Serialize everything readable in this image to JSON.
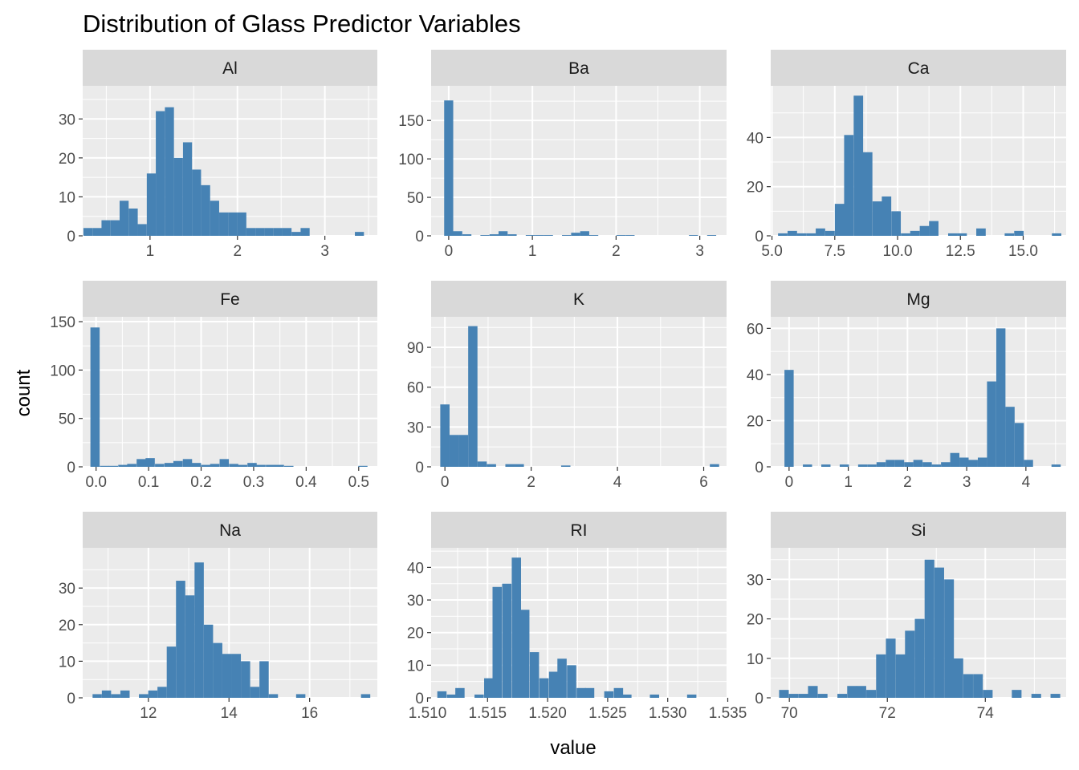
{
  "title": "Distribution of Glass Predictor Variables",
  "xlabel": "value",
  "ylabel": "count",
  "colors": {
    "bar": "#4682b4",
    "panel_background": "#ebebeb",
    "strip_background": "#d9d9d9",
    "grid": "#ffffff"
  },
  "chart_data": [
    {
      "type": "bar",
      "facet": "Al",
      "xlim": [
        0.23,
        3.6
      ],
      "ylim": [
        0,
        38.5
      ],
      "xticks": [
        1,
        2,
        3
      ],
      "xtick_labels": [
        "1",
        "2",
        "3"
      ],
      "yticks": [
        0,
        10,
        20,
        30
      ],
      "ytick_labels": [
        "0",
        "10",
        "20",
        "30"
      ],
      "bin_width": 0.1035,
      "bin_centers": [
        0.29,
        0.394,
        0.497,
        0.601,
        0.704,
        0.808,
        0.911,
        1.015,
        1.118,
        1.222,
        1.325,
        1.429,
        1.532,
        1.636,
        1.739,
        1.843,
        1.946,
        2.05,
        2.153,
        2.257,
        2.36,
        2.464,
        2.567,
        2.671,
        2.774,
        2.878,
        2.981,
        3.085,
        3.188,
        3.292,
        3.395,
        3.499
      ],
      "counts": [
        2,
        2,
        4,
        4,
        9,
        7,
        3,
        16,
        32,
        33,
        20,
        24,
        17,
        13,
        9,
        6,
        6,
        6,
        2,
        2,
        2,
        2,
        2,
        1,
        2,
        0,
        0,
        0,
        0,
        0,
        1,
        0
      ]
    },
    {
      "type": "bar",
      "facet": "Ba",
      "xlim": [
        -0.21,
        3.32
      ],
      "ylim": [
        0,
        195
      ],
      "xticks": [
        0,
        1,
        2,
        3
      ],
      "xtick_labels": [
        "0",
        "1",
        "2",
        "3"
      ],
      "yticks": [
        0,
        50,
        100,
        150
      ],
      "ytick_labels": [
        "0",
        "50",
        "100",
        "150"
      ],
      "bin_width": 0.1083,
      "bin_centers": [
        0,
        0.108,
        0.217,
        0.325,
        0.433,
        0.542,
        0.65,
        0.758,
        0.867,
        0.975,
        1.083,
        1.192,
        1.3,
        1.408,
        1.517,
        1.625,
        1.733,
        1.842,
        1.95,
        2.058,
        2.167,
        2.275,
        2.383,
        2.492,
        2.6,
        2.708,
        2.817,
        2.925,
        3.033,
        3.142
      ],
      "counts": [
        176,
        6,
        2,
        0,
        1,
        2,
        6,
        2,
        0,
        1,
        1,
        1,
        0,
        1,
        4,
        6,
        1,
        0,
        0,
        1,
        1,
        0,
        0,
        0,
        0,
        0,
        0,
        1,
        0,
        1
      ]
    },
    {
      "type": "bar",
      "facet": "Ca",
      "xlim": [
        4.95,
        16.71
      ],
      "ylim": [
        0,
        61
      ],
      "xticks": [
        5.0,
        7.5,
        10.0,
        12.5,
        15.0
      ],
      "xtick_labels": [
        "5.0",
        "7.5",
        "10.0",
        "12.5",
        "15.0"
      ],
      "yticks": [
        0,
        20,
        40
      ],
      "ytick_labels": [
        "0",
        "20",
        "40"
      ],
      "bin_width": 0.376,
      "bin_centers": [
        5.43,
        5.81,
        6.18,
        6.56,
        6.93,
        7.31,
        7.69,
        8.06,
        8.44,
        8.81,
        9.19,
        9.56,
        9.94,
        10.32,
        10.69,
        11.07,
        11.44,
        11.82,
        12.2,
        12.57,
        12.95,
        13.32,
        13.7,
        14.08,
        14.45,
        14.83,
        15.2,
        15.58,
        15.96,
        16.33
      ],
      "counts": [
        1,
        2,
        1,
        1,
        3,
        2,
        13,
        41,
        57,
        34,
        14,
        16,
        10,
        1,
        2,
        4,
        6,
        0,
        1,
        1,
        0,
        3,
        0,
        0,
        1,
        2,
        0,
        0,
        0,
        1
      ]
    },
    {
      "type": "bar",
      "facet": "Fe",
      "xlim": [
        -0.0255,
        0.5355
      ],
      "ylim": [
        0,
        155
      ],
      "xticks": [
        0.0,
        0.1,
        0.2,
        0.3,
        0.4,
        0.5
      ],
      "xtick_labels": [
        "0.0",
        "0.1",
        "0.2",
        "0.3",
        "0.4",
        "0.5"
      ],
      "yticks": [
        0,
        50,
        100,
        150
      ],
      "ytick_labels": [
        "0",
        "50",
        "100",
        "150"
      ],
      "bin_width": 0.0176,
      "bin_centers": [
        -0.002,
        0.016,
        0.033,
        0.051,
        0.068,
        0.086,
        0.103,
        0.121,
        0.139,
        0.156,
        0.174,
        0.191,
        0.209,
        0.226,
        0.244,
        0.262,
        0.279,
        0.297,
        0.314,
        0.332,
        0.349,
        0.367,
        0.385,
        0.402,
        0.42,
        0.437,
        0.455,
        0.472,
        0.49,
        0.508
      ],
      "counts": [
        144,
        1,
        1,
        2,
        3,
        8,
        9,
        3,
        4,
        6,
        8,
        4,
        2,
        3,
        8,
        3,
        2,
        4,
        2,
        2,
        2,
        1,
        0,
        0,
        0,
        0,
        0,
        0,
        0,
        1
      ]
    },
    {
      "type": "bar",
      "facet": "K",
      "xlim": [
        -0.32,
        6.53
      ],
      "ylim": [
        0,
        113
      ],
      "xticks": [
        0,
        2,
        4,
        6
      ],
      "xtick_labels": [
        "0",
        "2",
        "4",
        "6"
      ],
      "yticks": [
        0,
        30,
        60,
        90
      ],
      "ytick_labels": [
        "0",
        "30",
        "60",
        "90"
      ],
      "bin_width": 0.2155,
      "bin_centers": [
        0,
        0.216,
        0.431,
        0.647,
        0.862,
        1.078,
        1.293,
        1.509,
        1.724,
        1.94,
        2.155,
        2.371,
        2.586,
        2.802,
        3.017,
        3.233,
        3.448,
        3.664,
        3.879,
        4.095,
        4.31,
        4.526,
        4.741,
        4.957,
        5.172,
        5.388,
        5.603,
        5.819,
        6.034,
        6.25
      ],
      "counts": [
        47,
        24,
        24,
        106,
        4,
        2,
        0,
        2,
        2,
        0,
        0,
        0,
        0,
        1,
        0,
        0,
        0,
        0,
        0,
        0,
        0,
        0,
        0,
        0,
        0,
        0,
        0,
        0,
        0,
        2
      ]
    },
    {
      "type": "bar",
      "facet": "Mg",
      "xlim": [
        -0.31,
        4.68
      ],
      "ylim": [
        0,
        65
      ],
      "xticks": [
        0,
        1,
        2,
        3,
        4
      ],
      "xtick_labels": [
        "0",
        "1",
        "2",
        "3",
        "4"
      ],
      "yticks": [
        0,
        20,
        40,
        60
      ],
      "ytick_labels": [
        "0",
        "20",
        "40",
        "60"
      ],
      "bin_width": 0.1555,
      "bin_centers": [
        0,
        0.156,
        0.311,
        0.467,
        0.622,
        0.778,
        0.933,
        1.089,
        1.244,
        1.4,
        1.555,
        1.711,
        1.866,
        2.022,
        2.177,
        2.333,
        2.488,
        2.644,
        2.799,
        2.955,
        3.11,
        3.266,
        3.421,
        3.577,
        3.732,
        3.888,
        4.043,
        4.199,
        4.354,
        4.51
      ],
      "counts": [
        42,
        0,
        1,
        0,
        1,
        0,
        1,
        0,
        1,
        1,
        2,
        3,
        3,
        2,
        3,
        2,
        1,
        2,
        6,
        4,
        3,
        4,
        37,
        60,
        26,
        19,
        3,
        0,
        0,
        1
      ]
    },
    {
      "type": "bar",
      "facet": "Na",
      "xlim": [
        10.37,
        17.68
      ],
      "ylim": [
        0,
        41
      ],
      "xticks": [
        12,
        14,
        16
      ],
      "xtick_labels": [
        "12",
        "14",
        "16"
      ],
      "yticks": [
        0,
        10,
        20,
        30
      ],
      "ytick_labels": [
        "0",
        "10",
        "20",
        "30"
      ],
      "bin_width": 0.2296,
      "bin_centers": [
        10.73,
        10.96,
        11.19,
        11.42,
        11.65,
        11.88,
        12.11,
        12.34,
        12.57,
        12.8,
        13.03,
        13.26,
        13.49,
        13.72,
        13.95,
        14.18,
        14.41,
        14.64,
        14.87,
        15.1,
        15.32,
        15.55,
        15.78,
        16.01,
        16.24,
        16.47,
        16.7,
        16.93,
        17.16,
        17.39
      ],
      "counts": [
        1,
        2,
        1,
        2,
        0,
        1,
        2,
        3,
        14,
        32,
        28,
        37,
        20,
        15,
        12,
        12,
        10,
        3,
        10,
        1,
        0,
        0,
        1,
        0,
        0,
        0,
        0,
        0,
        0,
        1
      ]
    },
    {
      "type": "bar",
      "facet": "RI",
      "xlim": [
        1.5103,
        1.5349
      ],
      "ylim": [
        0,
        46
      ],
      "xticks": [
        1.51,
        1.515,
        1.52,
        1.525,
        1.53,
        1.535
      ],
      "xtick_labels": [
        "1.510",
        "1.515",
        "1.520",
        "1.525",
        "1.530",
        "1.535"
      ],
      "yticks": [
        0,
        10,
        20,
        30,
        40
      ],
      "ytick_labels": [
        "0",
        "10",
        "20",
        "30",
        "40"
      ],
      "bin_width": 0.000772,
      "bin_centers": [
        1.5112,
        1.512,
        1.5127,
        1.5135,
        1.5143,
        1.5151,
        1.5158,
        1.5166,
        1.5174,
        1.5181,
        1.5189,
        1.5197,
        1.5205,
        1.5212,
        1.522,
        1.5228,
        1.5235,
        1.5243,
        1.5251,
        1.5259,
        1.5266,
        1.5274,
        1.5282,
        1.5289,
        1.5297,
        1.5305,
        1.5313,
        1.532,
        1.5328,
        1.5336
      ],
      "counts": [
        2,
        1,
        3,
        0,
        1,
        6,
        34,
        35,
        43,
        27,
        14,
        6,
        8,
        12,
        10,
        3,
        3,
        0,
        2,
        3,
        1,
        0,
        0,
        1,
        0,
        0,
        0,
        1,
        0,
        0
      ]
    },
    {
      "type": "bar",
      "facet": "Si",
      "xlim": [
        69.62,
        75.65
      ],
      "ylim": [
        0,
        38
      ],
      "xticks": [
        70,
        72,
        74
      ],
      "xtick_labels": [
        "70",
        "72",
        "74"
      ],
      "yticks": [
        0,
        10,
        20,
        30
      ],
      "ytick_labels": [
        "0",
        "10",
        "20",
        "30"
      ],
      "bin_width": 0.1978,
      "bin_centers": [
        69.89,
        70.09,
        70.29,
        70.48,
        70.68,
        70.88,
        71.08,
        71.28,
        71.47,
        71.67,
        71.87,
        72.07,
        72.27,
        72.46,
        72.66,
        72.86,
        73.06,
        73.26,
        73.45,
        73.65,
        73.85,
        74.05,
        74.25,
        74.44,
        74.64,
        74.84,
        75.04,
        75.24,
        75.43
      ],
      "counts": [
        2,
        1,
        1,
        3,
        1,
        0,
        1,
        3,
        3,
        2,
        11,
        15,
        11,
        17,
        20,
        35,
        33,
        30,
        10,
        6,
        6,
        2,
        0,
        0,
        2,
        0,
        1,
        0,
        1
      ]
    }
  ]
}
